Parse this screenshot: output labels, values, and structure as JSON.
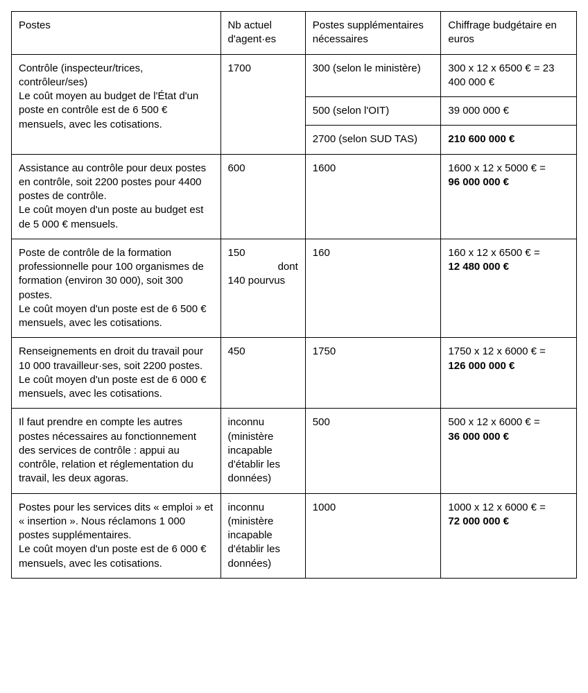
{
  "table": {
    "headers": {
      "postes": "Postes",
      "nb": "Nb actuel d'agent·es",
      "supp": "Postes supplémentaires nécessaires",
      "budg": "Chiffrage budgétaire en euros"
    },
    "row1": {
      "postes": "Contrôle (inspecteur/trices, contrôleur/ses)\nLe coût moyen au budget de l'État d'un poste en contrôle est de 6 500 € mensuels, avec les cotisations.",
      "nb": "1700",
      "supp_a": "300 (selon le ministère)",
      "budg_a": "300 x 12 x 6500 € = 23 400 000 €",
      "supp_b": "500 (selon l'OIT)",
      "budg_b": "39 000 000 €",
      "supp_c": "2700 (selon SUD TAS)",
      "budg_c": "210 600 000 €"
    },
    "row2": {
      "postes": "Assistance au contrôle pour deux postes en contrôle, soit 2200 postes pour 4400 postes de contrôle.\nLe coût moyen d'un poste au budget est de 5 000 € mensuels.",
      "nb": "600",
      "supp": "1600",
      "budg_calc": "1600 x 12 x 5000 € =",
      "budg_val": "96 000 000 €"
    },
    "row3": {
      "postes": "Poste de contrôle de la formation professionnelle pour 100 organismes de formation (environ 30 000), soit 300 postes.\nLe coût moyen d'un poste est de 6 500 € mensuels, avec les cotisations.",
      "nb_main": "150",
      "nb_sub1": "dont",
      "nb_sub2": "140 pourvus",
      "supp": "160",
      "budg_calc": "160 x 12 x 6500 € =",
      "budg_val": "12 480 000 €"
    },
    "row4": {
      "postes": "Renseignements en droit du travail pour 10 000 travailleur·ses, soit 2200 postes.\nLe coût moyen d'un poste est de 6 000 € mensuels, avec les cotisations.",
      "nb": "450",
      "supp": "1750",
      "budg_calc": "1750 x 12 x 6000 € =",
      "budg_val": "126 000 000 €"
    },
    "row5": {
      "postes": "Il faut prendre en compte les autres postes nécessaires au fonctionnement des services de contrôle : appui au contrôle, relation et réglementation du travail, les deux agoras.",
      "nb": "inconnu (ministère incapable d'établir les données)",
      "supp": "500",
      "budg_calc": "500 x 12 x 6000 € =",
      "budg_val": "36 000 000 €"
    },
    "row6": {
      "postes": "Postes pour les services dits « emploi » et « insertion ». Nous réclamons 1 000 postes supplémentaires.\nLe coût moyen d'un poste est de 6 000 € mensuels, avec les cotisations.",
      "nb": "inconnu (ministère incapable d'établir les données)",
      "supp": "1000",
      "budg_calc": "1000 x 12 x 6000 € =",
      "budg_val": "72 000 000 €"
    }
  }
}
